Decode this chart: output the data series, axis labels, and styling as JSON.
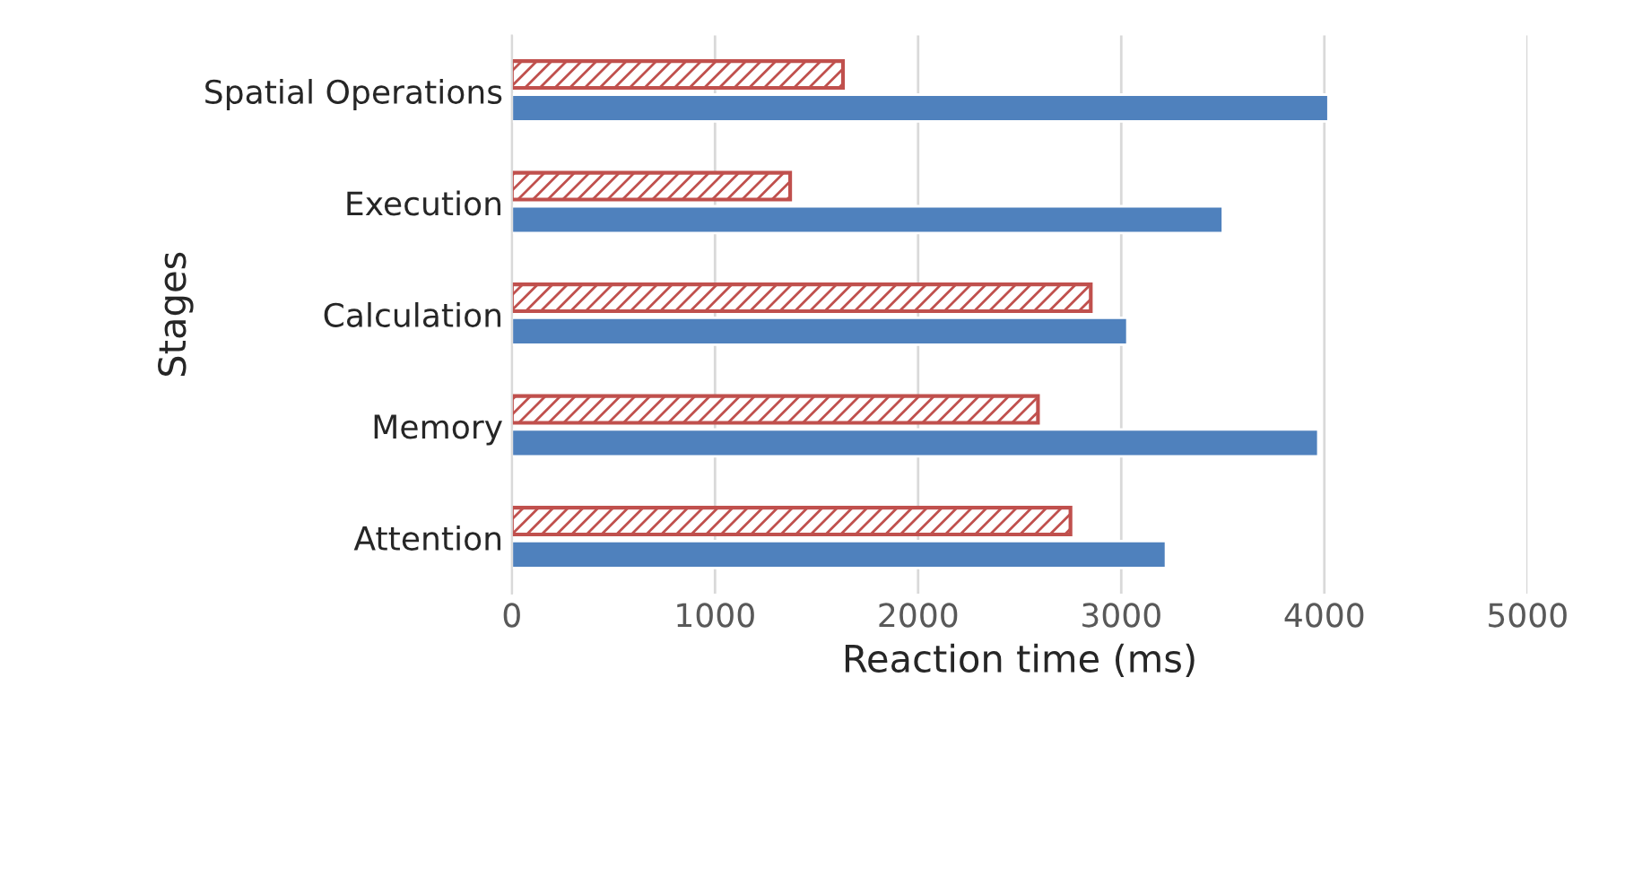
{
  "chart_data": {
    "type": "bar",
    "orientation": "horizontal",
    "xlabel": "Reaction time (ms)",
    "ylabel": "Stages",
    "categories": [
      "Spatial Operations",
      "Execution",
      "Calculation",
      "Memory",
      "Attention"
    ],
    "series": [
      {
        "color": "#c0504d",
        "values": [
          1630,
          1370,
          2850,
          2590,
          2750
        ]
      },
      {
        "color": "#4f81bd",
        "values": [
          4020,
          3500,
          3030,
          3970,
          3220
        ]
      }
    ],
    "xlim": [
      0,
      5000
    ],
    "xticks": [
      0,
      1000,
      2000,
      3000,
      4000,
      5000
    ],
    "grid": "x"
  }
}
